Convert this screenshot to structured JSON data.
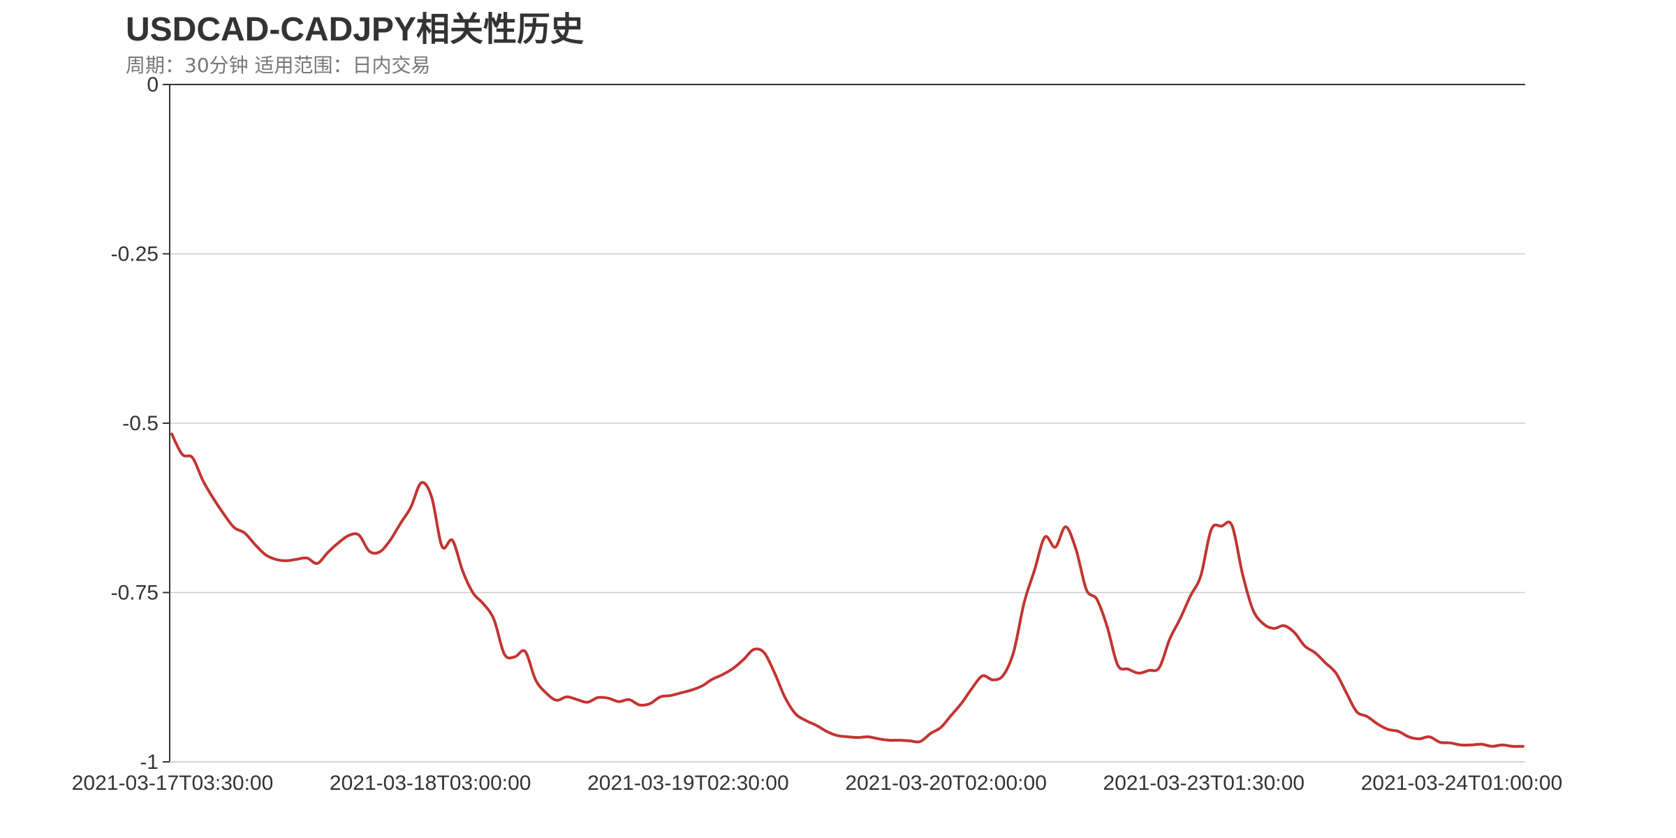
{
  "chart_data": {
    "type": "line",
    "title": "USDCAD-CADJPY相关性历史",
    "subtitle": "周期：30分钟 适用范围：日内交易",
    "xlabel": "",
    "ylabel": "",
    "ylim": [
      -1,
      0
    ],
    "yticks": [
      {
        "value": 0,
        "label": "0"
      },
      {
        "value": -0.25,
        "label": "-0.25"
      },
      {
        "value": -0.5,
        "label": "-0.5"
      },
      {
        "value": -0.75,
        "label": "-0.75"
      },
      {
        "value": -1,
        "label": "-1"
      }
    ],
    "xtick_labels": [
      "2021-03-17T03:30:00",
      "2021-03-18T03:00:00",
      "2021-03-19T02:30:00",
      "2021-03-20T02:00:00",
      "2021-03-23T01:30:00",
      "2021-03-24T01:00:00"
    ],
    "grid": true,
    "series": [
      {
        "color": "#c23531",
        "values": [
          -0.516,
          -0.546,
          -0.551,
          -0.585,
          -0.611,
          -0.634,
          -0.654,
          -0.662,
          -0.679,
          -0.694,
          -0.701,
          -0.703,
          -0.701,
          -0.699,
          -0.707,
          -0.691,
          -0.677,
          -0.666,
          -0.665,
          -0.689,
          -0.69,
          -0.673,
          -0.648,
          -0.624,
          -0.588,
          -0.609,
          -0.682,
          -0.673,
          -0.719,
          -0.751,
          -0.767,
          -0.79,
          -0.841,
          -0.845,
          -0.837,
          -0.879,
          -0.898,
          -0.909,
          -0.904,
          -0.908,
          -0.912,
          -0.905,
          -0.906,
          -0.911,
          -0.908,
          -0.916,
          -0.914,
          -0.904,
          -0.902,
          -0.898,
          -0.894,
          -0.888,
          -0.878,
          -0.871,
          -0.862,
          -0.849,
          -0.834,
          -0.839,
          -0.869,
          -0.905,
          -0.929,
          -0.939,
          -0.946,
          -0.955,
          -0.961,
          -0.963,
          -0.964,
          -0.963,
          -0.966,
          -0.968,
          -0.968,
          -0.969,
          -0.97,
          -0.958,
          -0.949,
          -0.931,
          -0.913,
          -0.891,
          -0.873,
          -0.879,
          -0.872,
          -0.837,
          -0.765,
          -0.717,
          -0.668,
          -0.683,
          -0.653,
          -0.687,
          -0.746,
          -0.76,
          -0.801,
          -0.857,
          -0.863,
          -0.869,
          -0.865,
          -0.861,
          -0.819,
          -0.789,
          -0.755,
          -0.725,
          -0.657,
          -0.652,
          -0.651,
          -0.722,
          -0.775,
          -0.796,
          -0.803,
          -0.799,
          -0.809,
          -0.829,
          -0.839,
          -0.854,
          -0.869,
          -0.898,
          -0.926,
          -0.933,
          -0.944,
          -0.952,
          -0.955,
          -0.963,
          -0.966,
          -0.963,
          -0.971,
          -0.972,
          -0.975,
          -0.975,
          -0.974,
          -0.977,
          -0.975,
          -0.977,
          -0.977
        ]
      }
    ]
  }
}
